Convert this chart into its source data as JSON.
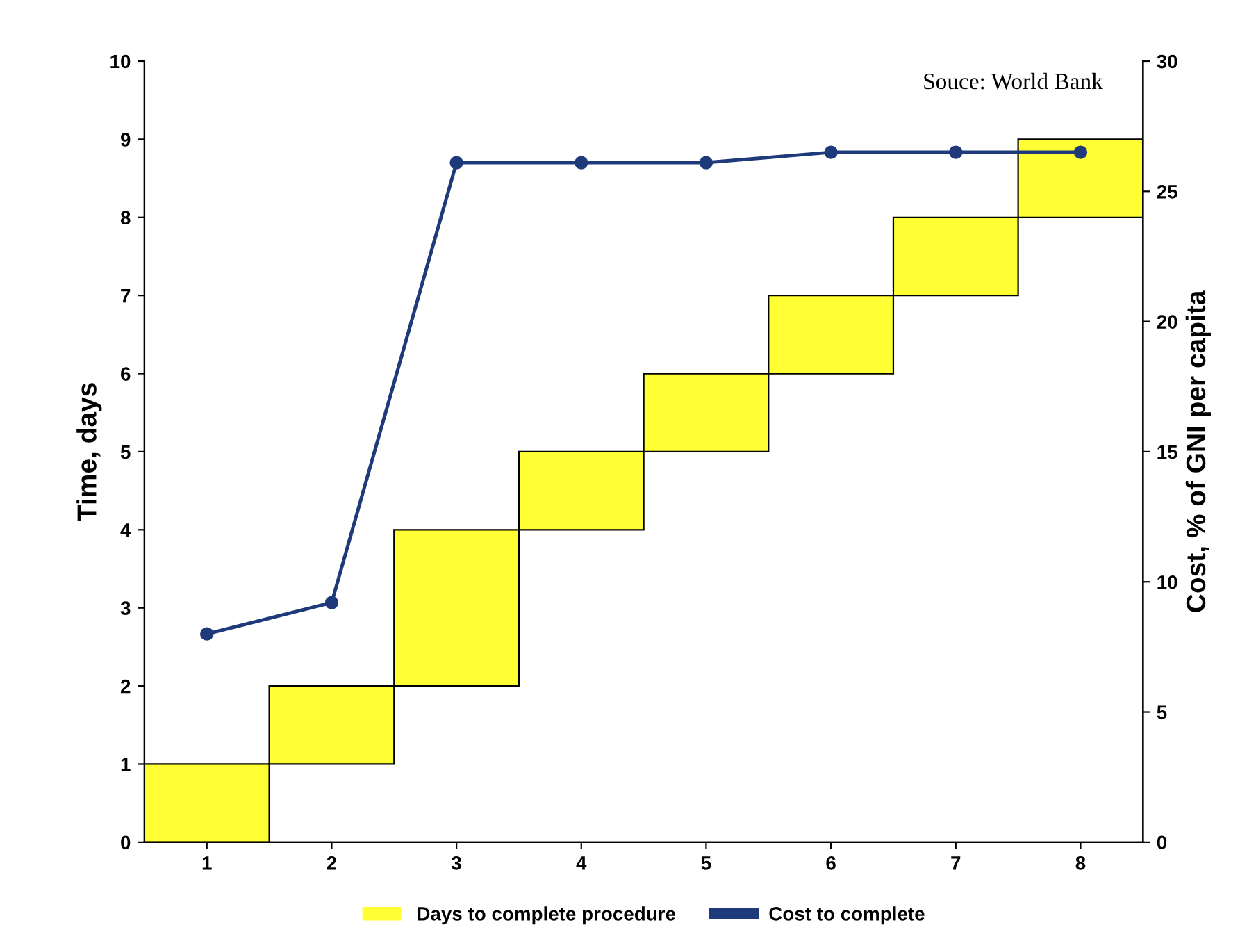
{
  "chart_data": {
    "type": "bar",
    "ylabel": "Time, days",
    "y2label": "Cost, % of GNI per capita",
    "annotations": [
      "Souce: World Bank"
    ],
    "categories": [
      "1",
      "2",
      "3",
      "4",
      "5",
      "6",
      "7",
      "8"
    ],
    "series": [
      {
        "name": "Days to complete procedure",
        "color": "#ffff33",
        "values": [
          1,
          1,
          2,
          1,
          1,
          1,
          1,
          1
        ],
        "base": [
          0,
          1,
          2,
          4,
          5,
          6,
          7,
          8
        ]
      },
      {
        "name": "Cost to complete",
        "type": "line",
        "axis": "y2",
        "color": "#1f3a7a",
        "marker": "circle",
        "values": [
          8,
          9.2,
          26.1,
          26.1,
          26.1,
          26.5,
          26.5,
          26.5
        ]
      }
    ],
    "ylim": [
      0,
      10
    ],
    "yticks": [
      0,
      1,
      2,
      3,
      4,
      5,
      6,
      7,
      8,
      9,
      10
    ],
    "y2lim": [
      0,
      30
    ],
    "y2ticks": [
      0,
      5,
      10,
      15,
      20,
      25,
      30
    ],
    "grid": false,
    "legend": "bottom"
  }
}
